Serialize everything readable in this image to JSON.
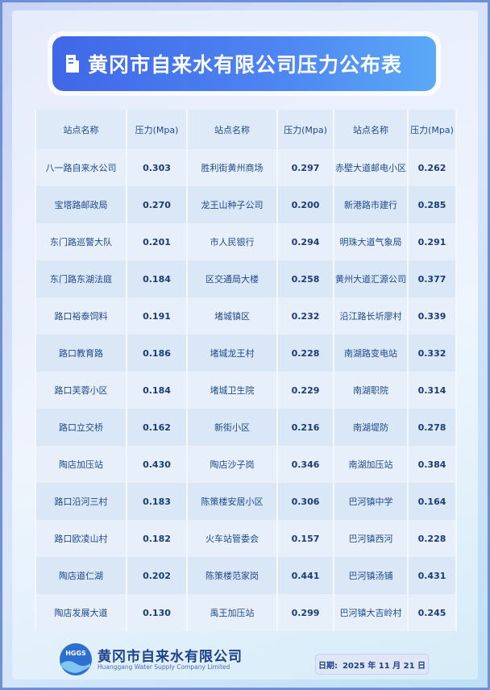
{
  "header": {
    "title": "黄冈市自来水有限公司压力公布表"
  },
  "table": {
    "headers": [
      "站点名称",
      "压力(Mpa)",
      "站点名称",
      "压力(Mpa)",
      "站点名称",
      "压力(Mpa)"
    ],
    "rows": [
      [
        "八一路自来水公司",
        "0.303",
        "胜利街黄州商场",
        "0.297",
        "赤壁大道邮电小区",
        "0.262"
      ],
      [
        "宝塔路邮政局",
        "0.270",
        "龙王山种子公司",
        "0.200",
        "新港路市建行",
        "0.285"
      ],
      [
        "东门路巡警大队",
        "0.201",
        "市人民银行",
        "0.294",
        "明珠大道气象局",
        "0.291"
      ],
      [
        "东门路东湖法庭",
        "0.184",
        "区交通局大楼",
        "0.258",
        "黄州大道汇源公司",
        "0.377"
      ],
      [
        "路口裕泰饲料",
        "0.191",
        "堵城镇区",
        "0.232",
        "沿江路长圻廖村",
        "0.339"
      ],
      [
        "路口教育路",
        "0.186",
        "堵城龙王村",
        "0.228",
        "南湖路变电站",
        "0.332"
      ],
      [
        "路口芙蓉小区",
        "0.184",
        "堵城卫生院",
        "0.229",
        "南湖职院",
        "0.314"
      ],
      [
        "路口立交桥",
        "0.162",
        "新街小区",
        "0.216",
        "南湖堤防",
        "0.278"
      ],
      [
        "陶店加压站",
        "0.430",
        "陶店沙子岗",
        "0.346",
        "南湖加压站",
        "0.384"
      ],
      [
        "路口沿河三村",
        "0.183",
        "陈策楼安居小区",
        "0.306",
        "巴河镇中学",
        "0.164"
      ],
      [
        "路口欧凌山村",
        "0.182",
        "火车站管委会",
        "0.157",
        "巴河镇西河",
        "0.228"
      ],
      [
        "陶店道仁湖",
        "0.202",
        "陈策楼范家岗",
        "0.441",
        "巴河镇汤铺",
        "0.431"
      ],
      [
        "陶店发展大道",
        "0.130",
        "禹王加压站",
        "0.299",
        "巴河镇大吉岭村",
        "0.245"
      ]
    ]
  },
  "footer": {
    "logo": "HGGS",
    "company_cn": "黄冈市自来水有限公司",
    "company_en": "Huanggang Water Supply Company Limited",
    "date_label": "日期:",
    "date": "2025 年 11 月 21 日"
  }
}
